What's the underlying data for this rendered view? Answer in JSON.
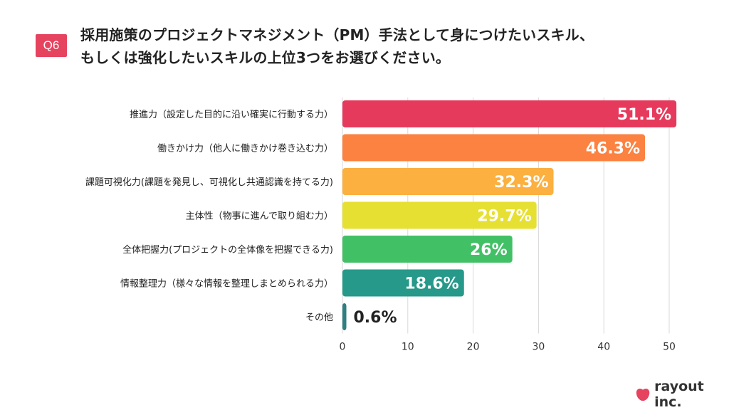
{
  "header": {
    "badge": "Q6",
    "title_line1": "採用施策のプロジェクトマネジメント（PM）手法として身につけたいスキル、",
    "title_line2": "もしくは強化したいスキルの上位3つをお選びください。"
  },
  "chart_data": {
    "type": "bar",
    "orientation": "horizontal",
    "categories": [
      "推進力（設定した目的に沿い確実に行動する力）",
      "働きかけ力（他人に働きかけ巻き込む力）",
      "課題可視化力(課題を発見し、可視化し共通認識を持てる力)",
      "主体性（物事に進んで取り組む力）",
      "全体把握力(プロジェクトの全体像を把握できる力)",
      "情報整理力（様々な情報を整理しまとめられる力）",
      "その他"
    ],
    "values": [
      51.1,
      46.3,
      32.3,
      29.7,
      26,
      18.6,
      0.6
    ],
    "data_labels": [
      "51.1%",
      "46.3%",
      "32.3%",
      "29.7%",
      "26%",
      "18.6%",
      "0.6%"
    ],
    "colors": [
      "#e63a5c",
      "#fb8240",
      "#fbb040",
      "#e6e033",
      "#42c066",
      "#26998a",
      "#2d7f80"
    ],
    "x_ticks": [
      0,
      10,
      20,
      30,
      40,
      50
    ],
    "xlim": [
      0,
      50
    ],
    "grid": true
  },
  "brand": {
    "name": "rayout inc.",
    "color": "#e6435f"
  }
}
